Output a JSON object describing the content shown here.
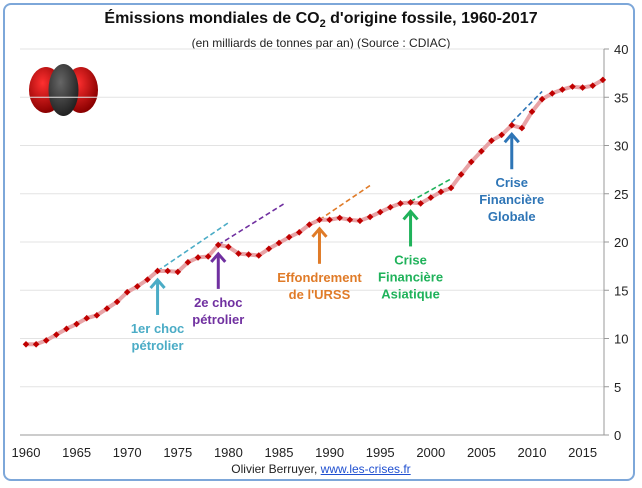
{
  "chart_data": {
    "type": "line",
    "title": "Émissions mondiales de CO2 d'origine fossile, 1960-2017",
    "title_parts": {
      "before": "Émissions mondiales de CO",
      "sub": "2",
      "after": " d'origine fossile, 1960-2017"
    },
    "subtitle": "(en milliards de tonnes par an) (Source : CDIAC)",
    "xlim": [
      1960,
      2017
    ],
    "ylim": [
      0,
      40
    ],
    "x_ticks": [
      1960,
      1965,
      1970,
      1975,
      1980,
      1985,
      1990,
      1995,
      2000,
      2005,
      2010,
      2015
    ],
    "y_ticks": [
      0,
      5,
      10,
      15,
      20,
      25,
      30,
      35,
      40
    ],
    "y_axis_side": "right",
    "grid": true,
    "x": [
      1960,
      1961,
      1962,
      1963,
      1964,
      1965,
      1966,
      1967,
      1968,
      1969,
      1970,
      1971,
      1972,
      1973,
      1974,
      1975,
      1976,
      1977,
      1978,
      1979,
      1980,
      1981,
      1982,
      1983,
      1984,
      1985,
      1986,
      1987,
      1988,
      1989,
      1990,
      1991,
      1992,
      1993,
      1994,
      1995,
      1996,
      1997,
      1998,
      1999,
      2000,
      2001,
      2002,
      2003,
      2004,
      2005,
      2006,
      2007,
      2008,
      2009,
      2010,
      2011,
      2012,
      2013,
      2014,
      2015,
      2016,
      2017
    ],
    "values": [
      9.4,
      9.4,
      9.8,
      10.4,
      11.0,
      11.5,
      12.1,
      12.4,
      13.1,
      13.8,
      14.8,
      15.4,
      16.1,
      17.0,
      17.0,
      16.9,
      17.9,
      18.4,
      18.5,
      19.7,
      19.5,
      18.8,
      18.7,
      18.6,
      19.3,
      19.9,
      20.5,
      21.0,
      21.8,
      22.3,
      22.3,
      22.5,
      22.3,
      22.2,
      22.6,
      23.1,
      23.6,
      24.0,
      24.1,
      24.0,
      24.6,
      25.2,
      25.6,
      27.0,
      28.3,
      29.4,
      30.5,
      31.1,
      32.1,
      31.8,
      33.5,
      34.8,
      35.4,
      35.8,
      36.1,
      36.0,
      36.2,
      36.8
    ],
    "line_color": "#e8a3a6",
    "marker_color": "#c00000",
    "trend_lines": [
      {
        "from": [
          1973,
          17.0
        ],
        "to": [
          1980,
          22.0
        ],
        "color": "#4bacc6"
      },
      {
        "from": [
          1979,
          19.7
        ],
        "to": [
          1985.7,
          24.1
        ],
        "color": "#7030a0"
      },
      {
        "from": [
          1989,
          22.3
        ],
        "to": [
          1994.2,
          26.0
        ],
        "color": "#e07b28"
      },
      {
        "from": [
          1998,
          24.2
        ],
        "to": [
          2002.1,
          26.6
        ],
        "color": "#1fb25a"
      },
      {
        "from": [
          2008,
          32.4
        ],
        "to": [
          2011,
          35.6
        ],
        "color": "#2e75b6"
      }
    ],
    "annotations": [
      {
        "year": 1973,
        "lines": [
          "1er choc",
          "pétrolier"
        ],
        "sup": "er",
        "color": "#4bacc6"
      },
      {
        "year": 1979,
        "lines": [
          "2e choc",
          "pétrolier"
        ],
        "sup": "e",
        "color": "#7030a0"
      },
      {
        "year": 1989,
        "lines": [
          "Effondrement",
          "de l'URSS"
        ],
        "color": "#e07b28"
      },
      {
        "year": 1998,
        "lines": [
          "Crise",
          "Financière",
          "Asiatique"
        ],
        "color": "#1fb25a"
      },
      {
        "year": 2008,
        "lines": [
          "Crise",
          "Financière",
          "Globale"
        ],
        "color": "#2e75b6"
      }
    ]
  },
  "footer": {
    "author": "Olivier Berruyer,",
    "link": "www.les-crises.fr"
  },
  "icon": "co2-molecule-icon"
}
